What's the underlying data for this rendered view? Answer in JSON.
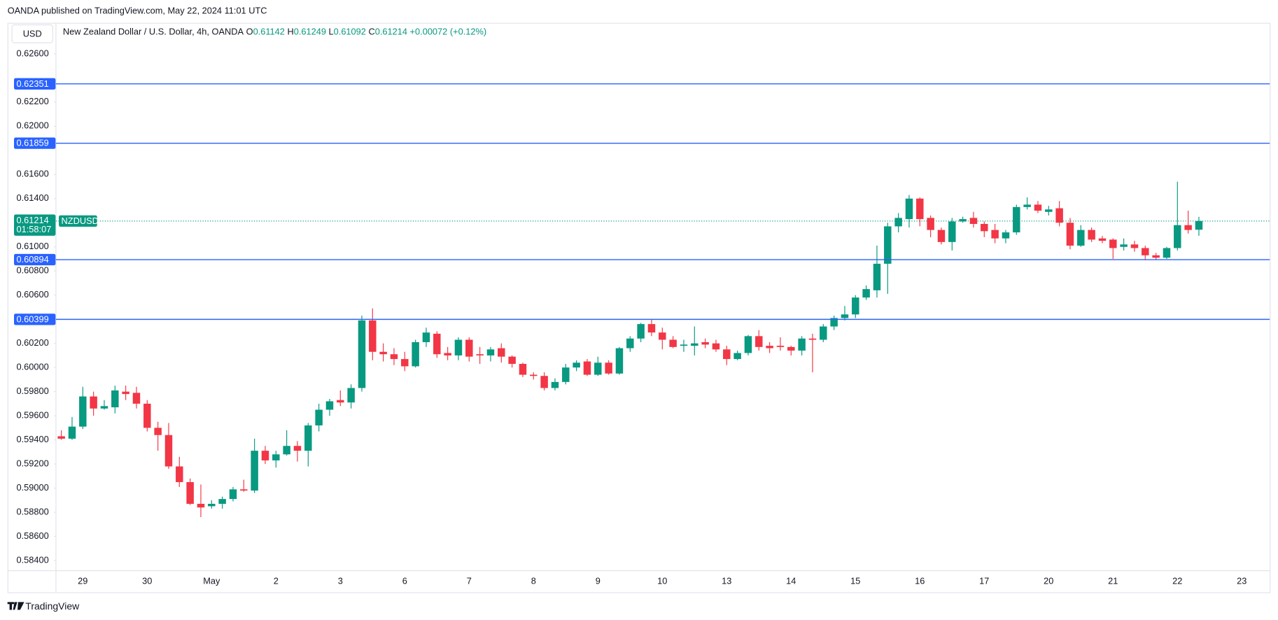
{
  "publisher_line": "OANDA published on TradingView.com, May 22, 2024 11:01 UTC",
  "footer": "TradingView",
  "chart_data": {
    "type": "candlestick",
    "currency": "USD",
    "title": "New Zealand Dollar / U.S. Dollar, 4h, OANDA",
    "ohlc_header": [
      {
        "label": "O",
        "value": 0.61142
      },
      {
        "label": "H",
        "value": 0.61249
      },
      {
        "label": "L",
        "value": 0.61092
      },
      {
        "label": "C",
        "value": 0.61214
      }
    ],
    "change": {
      "value": 0.00072,
      "label": "+0.00072"
    },
    "change_pct": {
      "value": 0.12,
      "label": "(+0.12%)"
    },
    "up_color": "#089981",
    "down_color": "#f23645",
    "categories": [
      null,
      null,
      "29",
      null,
      null,
      null,
      null,
      null,
      "30",
      null,
      null,
      null,
      null,
      null,
      "May",
      null,
      null,
      null,
      null,
      null,
      "2",
      null,
      null,
      null,
      null,
      null,
      "3",
      null,
      null,
      null,
      null,
      null,
      "6",
      null,
      null,
      null,
      null,
      null,
      "7",
      null,
      null,
      null,
      null,
      null,
      "8",
      null,
      null,
      null,
      null,
      null,
      "9",
      null,
      null,
      null,
      null,
      null,
      "10",
      null,
      null,
      null,
      null,
      null,
      "13",
      null,
      null,
      null,
      null,
      null,
      "14",
      null,
      null,
      null,
      null,
      null,
      "15",
      null,
      null,
      null,
      null,
      null,
      "16",
      null,
      null,
      null,
      null,
      null,
      "17",
      null,
      null,
      null,
      null,
      null,
      "20",
      null,
      null,
      null,
      null,
      null,
      "21",
      null,
      null,
      null,
      null,
      null,
      "22",
      null,
      null,
      null,
      null,
      null,
      "23"
    ],
    "open": [
      0.5943,
      0.5941,
      0.5951,
      0.5976,
      0.5966,
      0.5967,
      0.598,
      0.5979,
      0.597,
      0.595,
      0.5944,
      0.5918,
      0.5905,
      0.5887,
      0.5885,
      0.5887,
      0.5891,
      0.5899,
      0.5898,
      0.5931,
      0.5923,
      0.5928,
      0.5935,
      0.5931,
      0.5952,
      0.5965,
      0.5973,
      0.5971,
      0.5983,
      0.6039,
      0.6013,
      0.6011,
      0.6007,
      0.6001,
      0.6021,
      0.6028,
      0.6012,
      0.601,
      0.6023,
      0.6011,
      0.601,
      0.6016,
      0.6009,
      0.6003,
      0.5994,
      0.5993,
      0.5983,
      0.5988,
      0.6,
      0.6005,
      0.5994,
      0.6004,
      0.5995,
      0.6016,
      0.6024,
      0.6036,
      0.6029,
      0.6023,
      0.6018,
      0.6018,
      0.6021,
      0.602,
      0.6015,
      0.6007,
      0.6012,
      0.6026,
      0.6018,
      0.6018,
      0.6017,
      0.6014,
      0.6024,
      0.6023,
      0.6034,
      0.6041,
      0.6044,
      0.6058,
      0.6064,
      0.6086,
      0.6117,
      0.6123,
      0.614,
      0.6124,
      0.6114,
      0.6104,
      0.6121,
      0.6124,
      0.6119,
      0.6114,
      0.6107,
      0.6112,
      0.6133,
      0.6135,
      0.6129,
      0.6132,
      0.612,
      0.6101,
      0.6114,
      0.6107,
      0.6106,
      0.61,
      0.6102,
      0.6099,
      0.6093,
      0.6091,
      0.6099,
      0.6118,
      0.61142,
      null,
      null,
      null,
      null
    ],
    "high": [
      0.5948,
      0.5959,
      0.5984,
      0.598,
      0.5973,
      0.5985,
      0.5985,
      0.5984,
      0.5973,
      0.5955,
      0.5954,
      0.5926,
      0.5908,
      0.5903,
      0.589,
      0.5893,
      0.5901,
      0.5907,
      0.5941,
      0.5935,
      0.5931,
      0.5948,
      0.5939,
      0.5954,
      0.597,
      0.5974,
      0.5981,
      0.5986,
      0.6043,
      0.6049,
      0.602,
      0.6016,
      0.6013,
      0.6023,
      0.6033,
      0.603,
      0.6017,
      0.6025,
      0.6025,
      0.6017,
      0.6017,
      0.602,
      0.601,
      0.6004,
      0.5996,
      0.5996,
      0.5991,
      0.6003,
      0.6006,
      0.6007,
      0.6009,
      0.6006,
      0.6017,
      0.6026,
      0.6037,
      0.604,
      0.6033,
      0.6026,
      0.6023,
      0.6034,
      0.6024,
      0.6023,
      0.6018,
      0.6014,
      0.6027,
      0.6031,
      0.6021,
      0.6025,
      0.6018,
      0.6026,
      0.6028,
      0.6036,
      0.6043,
      0.6051,
      0.606,
      0.6068,
      0.6101,
      0.612,
      0.6128,
      0.6143,
      0.6141,
      0.6126,
      0.6116,
      0.6124,
      0.6125,
      0.6129,
      0.6121,
      0.6119,
      0.6114,
      0.6135,
      0.6141,
      0.6138,
      0.6134,
      0.6138,
      0.6124,
      0.6118,
      0.6116,
      0.6109,
      0.6107,
      0.6107,
      0.6105,
      0.6101,
      0.6095,
      0.61,
      0.6154,
      0.613,
      0.61249,
      null,
      null,
      null,
      null
    ],
    "low": [
      0.594,
      0.594,
      0.5949,
      0.596,
      0.5965,
      0.5962,
      0.5973,
      0.5966,
      0.5947,
      0.5931,
      0.5916,
      0.5901,
      0.5886,
      0.5876,
      0.5883,
      0.5883,
      0.5889,
      0.5897,
      0.5896,
      0.592,
      0.5917,
      0.5927,
      0.5922,
      0.5918,
      0.5947,
      0.596,
      0.5968,
      0.5966,
      0.598,
      0.6006,
      0.6005,
      0.6002,
      0.5997,
      0.6,
      0.6017,
      0.6008,
      0.6006,
      0.6006,
      0.6005,
      0.6003,
      0.6005,
      0.6004,
      0.6,
      0.5992,
      0.599,
      0.5981,
      0.5981,
      0.5986,
      0.5997,
      0.5993,
      0.5993,
      0.5994,
      0.5994,
      0.6013,
      0.6021,
      0.6026,
      0.6015,
      0.6016,
      0.6013,
      0.601,
      0.6016,
      0.6013,
      0.6002,
      0.6006,
      0.601,
      0.6014,
      0.6012,
      0.6014,
      0.601,
      0.601,
      0.5996,
      0.6021,
      0.6031,
      0.6039,
      0.6041,
      0.6056,
      0.6058,
      0.6061,
      0.6112,
      0.6116,
      0.6117,
      0.6108,
      0.6102,
      0.6097,
      0.612,
      0.6116,
      0.6108,
      0.6103,
      0.6103,
      0.611,
      0.6131,
      0.6128,
      0.6126,
      0.6117,
      0.6098,
      0.61,
      0.6104,
      0.6103,
      0.609,
      0.6097,
      0.6096,
      0.6089,
      0.6089,
      0.609,
      0.6097,
      0.6111,
      0.61092,
      null,
      null,
      null,
      null
    ],
    "close": [
      0.5941,
      0.5951,
      0.5976,
      0.5966,
      0.5968,
      0.5981,
      0.5978,
      0.597,
      0.595,
      0.5944,
      0.5918,
      0.5905,
      0.5887,
      0.5884,
      0.5887,
      0.5891,
      0.5899,
      0.5898,
      0.5931,
      0.5923,
      0.5928,
      0.5935,
      0.5931,
      0.5952,
      0.5965,
      0.5972,
      0.5971,
      0.5983,
      0.6039,
      0.6013,
      0.6011,
      0.6007,
      0.6001,
      0.6021,
      0.6029,
      0.6011,
      0.601,
      0.6023,
      0.6009,
      0.601,
      0.6015,
      0.6009,
      0.6003,
      0.5994,
      0.5993,
      0.5983,
      0.5988,
      0.6,
      0.6004,
      0.5994,
      0.6004,
      0.5995,
      0.6016,
      0.6024,
      0.6036,
      0.6029,
      0.6023,
      0.6017,
      0.6019,
      0.602,
      0.6019,
      0.6015,
      0.6007,
      0.6012,
      0.6026,
      0.6017,
      0.6016,
      0.6017,
      0.6014,
      0.6024,
      0.6023,
      0.6034,
      0.6041,
      0.6044,
      0.6058,
      0.6065,
      0.6086,
      0.6117,
      0.6124,
      0.614,
      0.6123,
      0.6114,
      0.6104,
      0.6121,
      0.6123,
      0.6119,
      0.6113,
      0.6107,
      0.6112,
      0.6133,
      0.6135,
      0.613,
      0.6131,
      0.612,
      0.6101,
      0.6114,
      0.6106,
      0.6105,
      0.6099,
      0.6102,
      0.6099,
      0.6093,
      0.6091,
      0.6099,
      0.6118,
      0.6114,
      0.61214,
      null,
      null,
      null,
      null
    ],
    "ylim": [
      0.58319,
      0.62857
    ],
    "yticks": [
      {
        "value": 0.626,
        "label": "0.62600"
      },
      {
        "value": 0.622,
        "label": "0.62200"
      },
      {
        "value": 0.62,
        "label": "0.62000"
      },
      {
        "value": 0.616,
        "label": "0.61600"
      },
      {
        "value": 0.614,
        "label": "0.61400"
      },
      {
        "value": 0.61,
        "label": "0.61000"
      },
      {
        "value": 0.608,
        "label": "0.60800"
      },
      {
        "value": 0.606,
        "label": "0.60600"
      },
      {
        "value": 0.602,
        "label": "0.60200"
      },
      {
        "value": 0.6,
        "label": "0.60000"
      },
      {
        "value": 0.598,
        "label": "0.59800"
      },
      {
        "value": 0.596,
        "label": "0.59600"
      },
      {
        "value": 0.594,
        "label": "0.59400"
      },
      {
        "value": 0.592,
        "label": "0.59200"
      },
      {
        "value": 0.59,
        "label": "0.59000"
      },
      {
        "value": 0.588,
        "label": "0.58800"
      },
      {
        "value": 0.586,
        "label": "0.58600"
      },
      {
        "value": 0.584,
        "label": "0.58400"
      }
    ],
    "levels": [
      0.62351,
      0.61859,
      0.60894,
      0.60399
    ],
    "level_color": "#2962ff",
    "last_price": {
      "value": 0.61214,
      "countdown": "01:58:07",
      "symbol": "NZDUSD",
      "color": "#089981"
    }
  }
}
